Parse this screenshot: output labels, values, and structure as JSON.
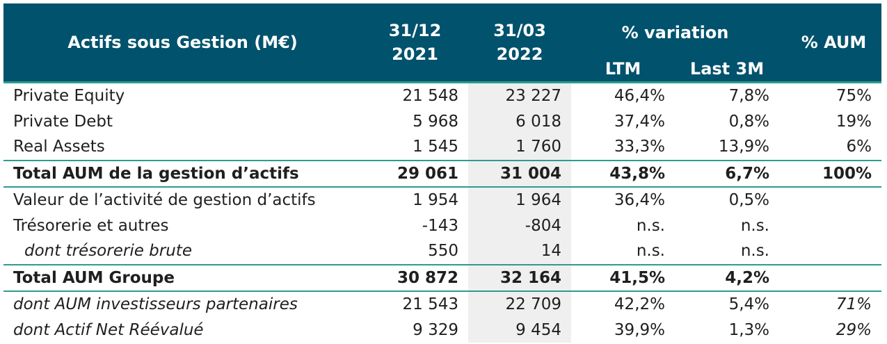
{
  "header": {
    "title": "Actifs sous Gestion (M€)",
    "col1": [
      "31/12",
      "2021"
    ],
    "col2": [
      "31/03",
      "2022"
    ],
    "variation": "% variation",
    "ltm": "LTM",
    "last3m": "Last 3M",
    "aum": "% AUM"
  },
  "rows": [
    {
      "label": "Private Equity",
      "v2021": "21 548",
      "v2022": "23 227",
      "ltm": "46,4%",
      "last3m": "7,8%",
      "aum": "75%"
    },
    {
      "label": "Private Debt",
      "v2021": "5 968",
      "v2022": "6 018",
      "ltm": "37,4%",
      "last3m": "0,8%",
      "aum": "19%"
    },
    {
      "label": "Real Assets",
      "v2021": "1 545",
      "v2022": "1 760",
      "ltm": "33,3%",
      "last3m": "13,9%",
      "aum": "6%"
    },
    {
      "label": "Total AUM de la gestion d’actifs",
      "v2021": "29 061",
      "v2022": "31 004",
      "ltm": "43,8%",
      "last3m": "6,7%",
      "aum": "100%"
    },
    {
      "label": "Valeur de l’activité de gestion d’actifs",
      "v2021": "1 954",
      "v2022": "1 964",
      "ltm": "36,4%",
      "last3m": "0,5%",
      "aum": ""
    },
    {
      "label": "Trésorerie et autres",
      "v2021": "-143",
      "v2022": "-804",
      "ltm": "n.s.",
      "last3m": "n.s.",
      "aum": ""
    },
    {
      "label": "dont trésorerie brute",
      "v2021": "550",
      "v2022": "14",
      "ltm": "n.s.",
      "last3m": "n.s.",
      "aum": ""
    },
    {
      "label": "Total AUM Groupe",
      "v2021": "30 872",
      "v2022": "32 164",
      "ltm": "41,5%",
      "last3m": "4,2%",
      "aum": ""
    },
    {
      "label": "dont AUM investisseurs partenaires",
      "v2021": "21 543",
      "v2022": "22 709",
      "ltm": "42,2%",
      "last3m": "5,4%",
      "aum": "71%"
    },
    {
      "label": "dont Actif Net Réévalué",
      "v2021": "9 329",
      "v2022": "9 454",
      "ltm": "39,9%",
      "last3m": "1,3%",
      "aum": "29%"
    }
  ]
}
